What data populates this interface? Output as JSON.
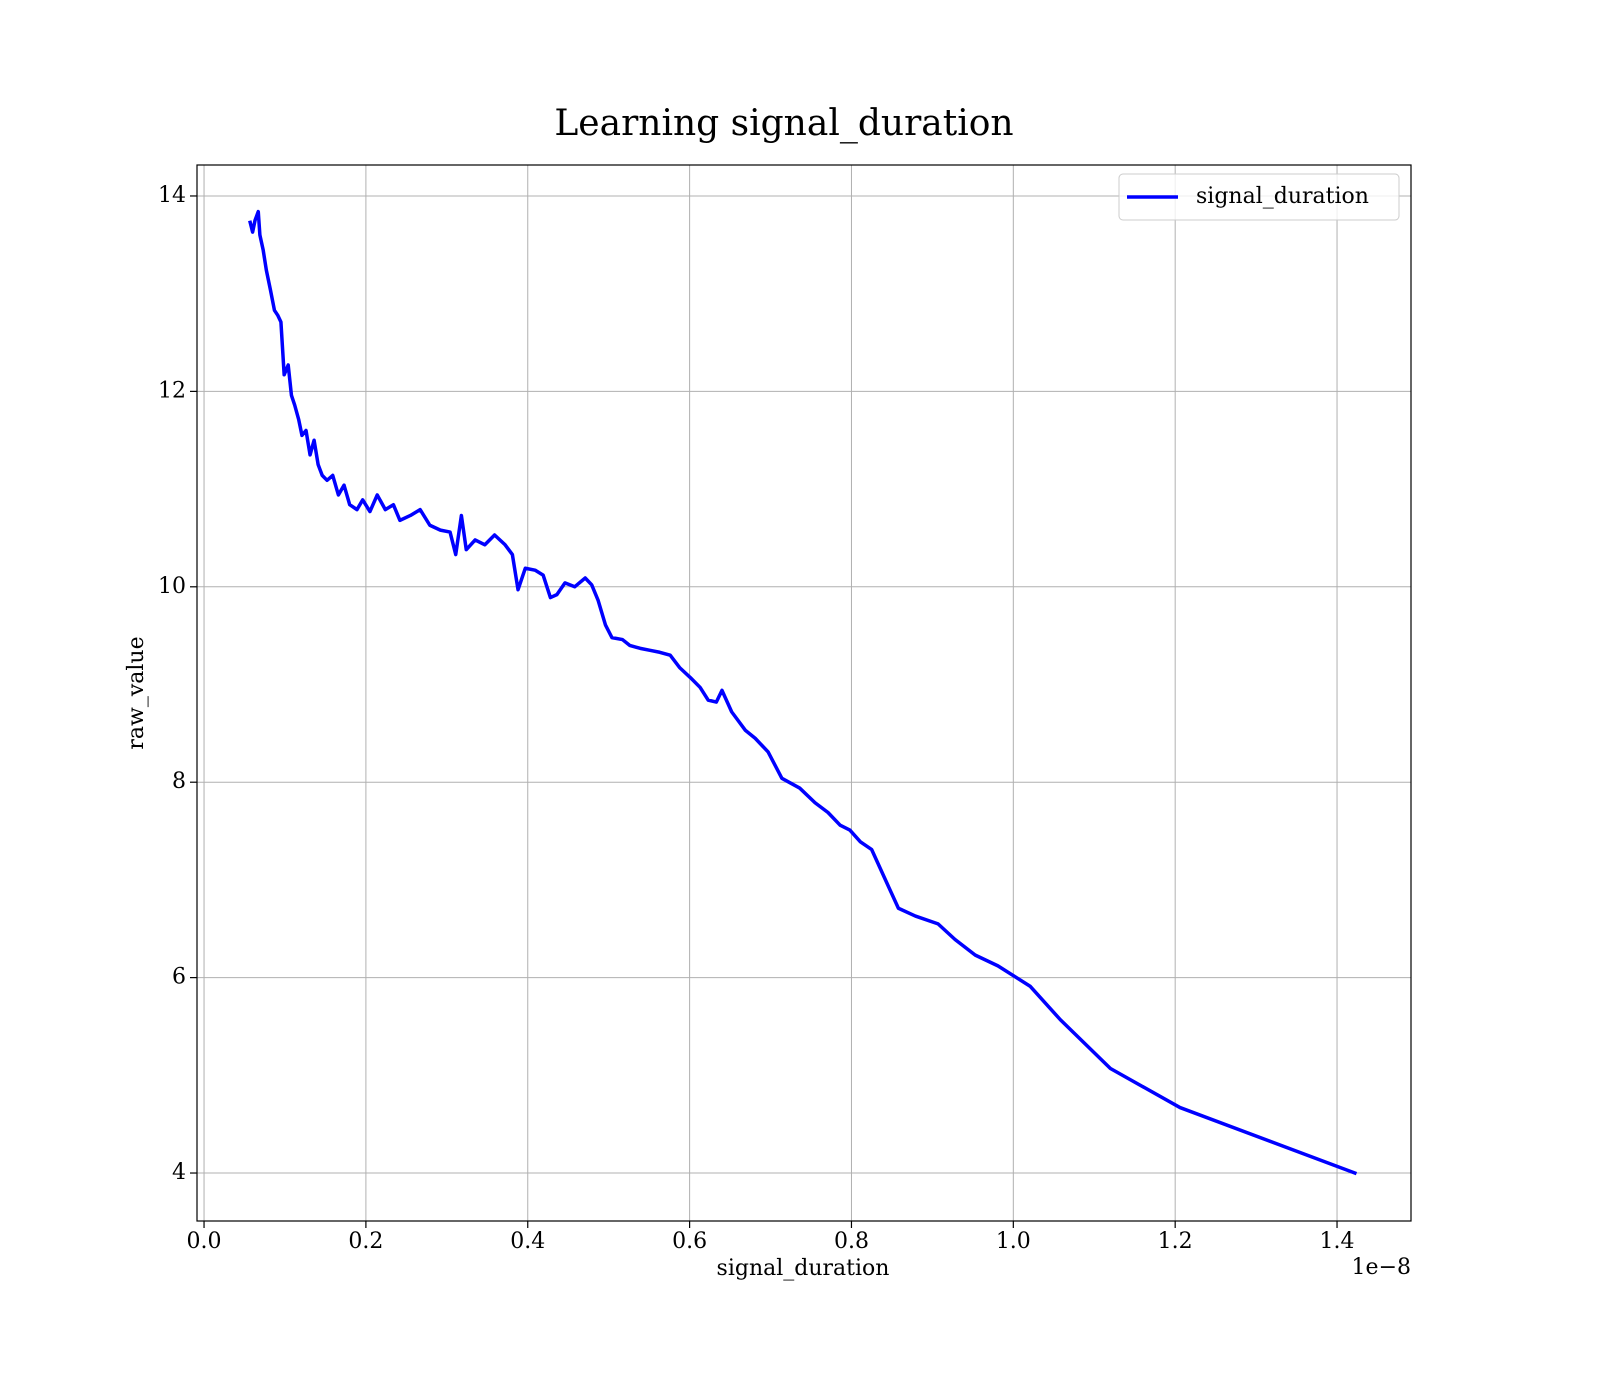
{
  "chart_data": {
    "type": "line",
    "title": "Learning signal_duration",
    "x_label": "signal_duration",
    "y_label": "raw_value",
    "x_offset_label": "1e−8",
    "x": [
      0.057,
      0.06,
      0.063,
      0.067,
      0.069,
      0.073,
      0.077,
      0.082,
      0.087,
      0.091,
      0.095,
      0.099,
      0.104,
      0.108,
      0.112,
      0.117,
      0.121,
      0.126,
      0.131,
      0.136,
      0.141,
      0.146,
      0.152,
      0.159,
      0.166,
      0.173,
      0.18,
      0.189,
      0.196,
      0.205,
      0.214,
      0.224,
      0.234,
      0.242,
      0.255,
      0.267,
      0.279,
      0.292,
      0.304,
      0.311,
      0.318,
      0.324,
      0.335,
      0.347,
      0.359,
      0.372,
      0.381,
      0.388,
      0.397,
      0.409,
      0.419,
      0.428,
      0.436,
      0.446,
      0.458,
      0.471,
      0.479,
      0.487,
      0.496,
      0.504,
      0.517,
      0.526,
      0.539,
      0.551,
      0.563,
      0.576,
      0.588,
      0.601,
      0.613,
      0.623,
      0.633,
      0.64,
      0.652,
      0.669,
      0.681,
      0.697,
      0.714,
      0.736,
      0.755,
      0.771,
      0.786,
      0.798,
      0.811,
      0.825,
      0.842,
      0.858,
      0.879,
      0.907,
      0.928,
      0.953,
      0.981,
      1.021,
      1.058,
      1.12,
      1.206,
      1.422
    ],
    "series": [
      {
        "name": "signal_duration",
        "color": "#0000ff",
        "values": [
          13.73,
          13.63,
          13.75,
          13.84,
          13.6,
          13.45,
          13.24,
          13.04,
          12.83,
          12.78,
          12.71,
          12.17,
          12.27,
          11.96,
          11.86,
          11.71,
          11.55,
          11.6,
          11.35,
          11.5,
          11.25,
          11.14,
          11.09,
          11.14,
          10.94,
          11.04,
          10.84,
          10.79,
          10.89,
          10.77,
          10.94,
          10.79,
          10.84,
          10.68,
          10.73,
          10.79,
          10.63,
          10.58,
          10.56,
          10.33,
          10.73,
          10.38,
          10.48,
          10.43,
          10.53,
          10.43,
          10.33,
          9.97,
          10.19,
          10.17,
          10.12,
          9.89,
          9.92,
          10.04,
          10.0,
          10.09,
          10.02,
          9.86,
          9.61,
          9.48,
          9.46,
          9.4,
          9.37,
          9.35,
          9.33,
          9.3,
          9.17,
          9.07,
          8.97,
          8.84,
          8.82,
          8.94,
          8.72,
          8.53,
          8.45,
          8.31,
          8.04,
          7.94,
          7.79,
          7.69,
          7.56,
          7.51,
          7.39,
          7.31,
          7.0,
          6.71,
          6.63,
          6.55,
          6.39,
          6.23,
          6.12,
          5.91,
          5.57,
          5.07,
          4.67,
          4.0
        ]
      }
    ],
    "xlim": [
      -0.0087,
      1.4914
    ],
    "ylim": [
      3.509,
      14.317
    ],
    "xticks": [
      {
        "value": 0,
        "label": "0.0"
      },
      0.2,
      0.4,
      0.6,
      0.8,
      {
        "value": 1,
        "label": "1.0"
      },
      1.2,
      1.4
    ],
    "yticks": [
      4,
      6,
      8,
      10,
      12,
      14
    ],
    "grid": true,
    "legend": "upper right"
  }
}
